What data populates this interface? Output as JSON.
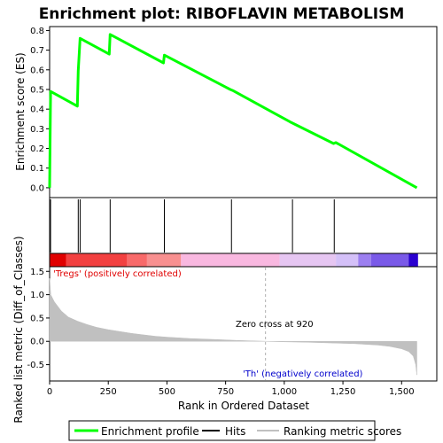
{
  "colors": {
    "enrichment_line": "#00ff00",
    "hits": "#000000",
    "metric_fill": "#c0c0c0",
    "zero_cross_line": "#b0b0b0",
    "positive_label": "#e00000",
    "negative_label": "#0000cc",
    "heatmap": [
      "#e00000",
      "#f24040",
      "#f86a6a",
      "#f89090",
      "#f9b8e0",
      "#e6c6f2",
      "#d4c0f8",
      "#c8b8f8",
      "#9c7ff0",
      "#7a5ae8",
      "#2a00d0"
    ]
  },
  "chart_data": [
    {
      "type": "line",
      "title": "Enrichment plot: RIBOFLAVIN METABOLISM",
      "ylabel": "Enrichment score (ES)",
      "xlim": [
        0,
        1650
      ],
      "ylim": [
        -0.05,
        0.82
      ],
      "yticks": [
        0.0,
        0.1,
        0.2,
        0.3,
        0.4,
        0.5,
        0.6,
        0.7,
        0.8
      ],
      "yticklabels": [
        "0.0",
        "0.1",
        "0.2",
        "0.3",
        "0.4",
        "0.5",
        "0.6",
        "0.7",
        "0.8"
      ],
      "series": [
        {
          "name": "Enrichment profile",
          "x": [
            0,
            4,
            118,
            122,
            130,
            254,
            258,
            485,
            489,
            770,
            780,
            1025,
            1210,
            1220,
            1565
          ],
          "y": [
            0.0,
            0.49,
            0.415,
            0.595,
            0.76,
            0.68,
            0.78,
            0.635,
            0.675,
            0.5,
            0.495,
            0.335,
            0.225,
            0.23,
            0.0
          ]
        }
      ],
      "hits": [
        4,
        122,
        130,
        258,
        489,
        775,
        1035,
        1213
      ]
    },
    {
      "type": "heatmap",
      "xlim": [
        0,
        1650
      ],
      "segments": [
        {
          "start": 0,
          "end": 70,
          "color_index": 0
        },
        {
          "start": 70,
          "end": 330,
          "color_index": 1
        },
        {
          "start": 330,
          "end": 415,
          "color_index": 2
        },
        {
          "start": 415,
          "end": 560,
          "color_index": 3
        },
        {
          "start": 560,
          "end": 980,
          "color_index": 4
        },
        {
          "start": 980,
          "end": 1220,
          "color_index": 5
        },
        {
          "start": 1220,
          "end": 1315,
          "color_index": 6
        },
        {
          "start": 1315,
          "end": 1370,
          "color_index": 8
        },
        {
          "start": 1370,
          "end": 1530,
          "color_index": 9
        },
        {
          "start": 1530,
          "end": 1570,
          "color_index": 10
        }
      ]
    },
    {
      "type": "area",
      "xlabel": "Rank in Ordered Dataset",
      "ylabel": "Ranked list metric (Diff_of_Classes)",
      "xlim": [
        0,
        1650
      ],
      "ylim": [
        -0.85,
        1.6
      ],
      "xticks": [
        0,
        250,
        500,
        750,
        1000,
        1250,
        1500
      ],
      "xticklabels": [
        "0",
        "250",
        "500",
        "750",
        "1,000",
        "1,250",
        "1,500"
      ],
      "yticks": [
        -0.5,
        0.0,
        0.5,
        1.0,
        1.5
      ],
      "yticklabels": [
        "-0.5",
        "0.0",
        "0.5",
        "1.0",
        "1.5"
      ],
      "series": [
        {
          "x": [
            0,
            5,
            20,
            50,
            80,
            120,
            160,
            200,
            250,
            300,
            350,
            400,
            450,
            500,
            600,
            700,
            800,
            920,
            1000,
            1100,
            1200,
            1300,
            1400,
            1450,
            1500,
            1530,
            1550,
            1560,
            1565
          ],
          "y": [
            1.35,
            1.0,
            0.85,
            0.65,
            0.52,
            0.43,
            0.36,
            0.3,
            0.25,
            0.21,
            0.17,
            0.14,
            0.11,
            0.09,
            0.06,
            0.04,
            0.02,
            0.0,
            -0.01,
            -0.02,
            -0.035,
            -0.05,
            -0.08,
            -0.11,
            -0.16,
            -0.22,
            -0.32,
            -0.5,
            -0.72
          ]
        }
      ],
      "zero_cross": 920,
      "annotations": {
        "positive": "'Tregs' (positively correlated)",
        "negative": "'Th' (negatively correlated)",
        "zero_cross": "Zero cross at 920"
      }
    }
  ],
  "legend": {
    "items": [
      {
        "label": "Enrichment profile",
        "kind": "line",
        "color": "#00ff00"
      },
      {
        "label": "Hits",
        "kind": "line",
        "color": "#000000"
      },
      {
        "label": "Ranking metric scores",
        "kind": "line",
        "color": "#c0c0c0"
      }
    ]
  }
}
